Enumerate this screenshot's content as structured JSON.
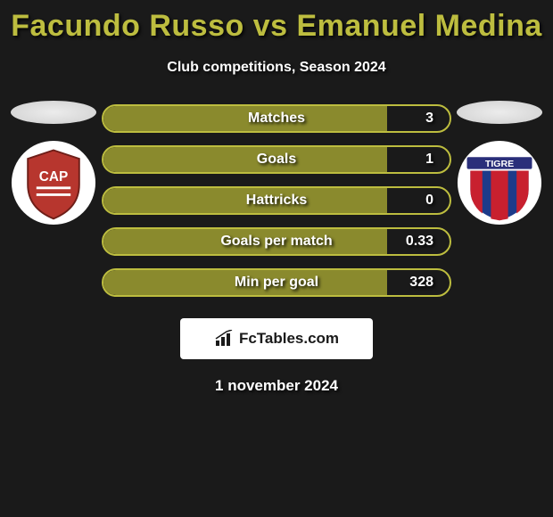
{
  "title": "Facundo Russo vs Emanuel Medina",
  "subtitle": "Club competitions, Season 2024",
  "date": "1 november 2024",
  "branding": "FcTables.com",
  "colors": {
    "accent": "#bdbd3f",
    "pill_border": "#bdbd3f",
    "pill_fill": "#8a8a2d",
    "background": "#1a1a1a"
  },
  "stats": [
    {
      "label": "Matches",
      "value": "3",
      "fill_pct": 82
    },
    {
      "label": "Goals",
      "value": "1",
      "fill_pct": 82
    },
    {
      "label": "Hattricks",
      "value": "0",
      "fill_pct": 82
    },
    {
      "label": "Goals per match",
      "value": "0.33",
      "fill_pct": 82
    },
    {
      "label": "Min per goal",
      "value": "328",
      "fill_pct": 82
    }
  ],
  "left_club": {
    "name": "Club Atlético Platense",
    "badge_bg": "#ffffff",
    "badge_shield": "#b7362e",
    "badge_text": "CAP"
  },
  "right_club": {
    "name": "Club Atlético Tigre",
    "badge_bg": "#ffffff",
    "stripe_blue": "#1d3b8a",
    "stripe_red": "#c8202f",
    "badge_text": "TIGRE"
  }
}
